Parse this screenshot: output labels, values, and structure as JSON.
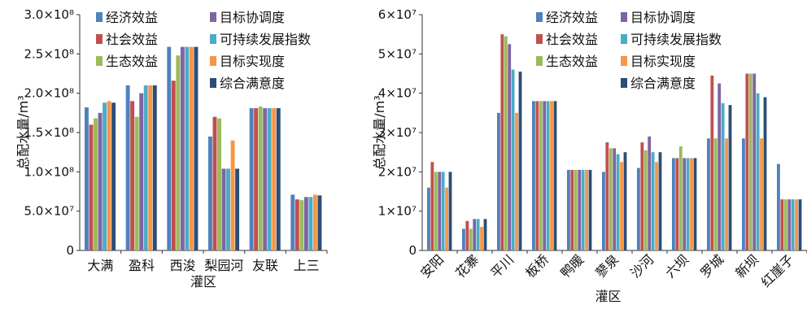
{
  "chart_data": [
    {
      "type": "bar",
      "xlabel": "灌区",
      "ylabel": "总配水量/m³",
      "ylim": [
        0,
        300000000
      ],
      "y_ticks": [
        0,
        50000000,
        100000000,
        150000000,
        200000000,
        250000000,
        300000000
      ],
      "y_tick_labels": [
        "0",
        "5.0×10⁷",
        "1.0×10⁸",
        "1.5×10⁸",
        "2.0×10⁸",
        "2.5×10⁸",
        "3.0×10⁸"
      ],
      "categories": [
        "大满",
        "盈科",
        "西浚",
        "梨园河",
        "友联",
        "上三"
      ],
      "legend_position": "top-left",
      "series": [
        {
          "name": "经济效益",
          "values": [
            182000000,
            210000000,
            259000000,
            145000000,
            181000000,
            71000000
          ]
        },
        {
          "name": "社会效益",
          "values": [
            160000000,
            190000000,
            216000000,
            170000000,
            181000000,
            65000000
          ]
        },
        {
          "name": "生态效益",
          "values": [
            168000000,
            170000000,
            248000000,
            168000000,
            183000000,
            64000000
          ]
        },
        {
          "name": "目标协调度",
          "values": [
            175000000,
            200000000,
            259000000,
            104000000,
            181000000,
            68000000
          ]
        },
        {
          "name": "可持续发展指数",
          "values": [
            188000000,
            210000000,
            259000000,
            104000000,
            181000000,
            68000000
          ]
        },
        {
          "name": "目标实现度",
          "values": [
            190000000,
            210000000,
            259000000,
            140000000,
            181000000,
            71000000
          ]
        },
        {
          "name": "综合满意度",
          "values": [
            188000000,
            210000000,
            259000000,
            104000000,
            181000000,
            70000000
          ]
        }
      ]
    },
    {
      "type": "bar",
      "xlabel": "灌区",
      "ylabel": "总配水量/m³",
      "ylim": [
        0,
        60000000
      ],
      "y_ticks": [
        0,
        10000000,
        20000000,
        30000000,
        40000000,
        50000000,
        60000000
      ],
      "y_tick_labels": [
        "0",
        "1×10⁷",
        "2×10⁷",
        "3×10⁷",
        "4×10⁷",
        "5×10⁷",
        "6×10⁷"
      ],
      "categories": [
        "安阳",
        "花寨",
        "平川",
        "板桥",
        "鸭暖",
        "蓼泉",
        "沙河",
        "六坝",
        "罗城",
        "新坝",
        "红崖子"
      ],
      "legend_position": "top-right",
      "series": [
        {
          "name": "经济效益",
          "values": [
            16000000,
            5500000,
            35000000,
            38000000,
            20500000,
            20000000,
            21000000,
            23500000,
            28500000,
            28500000,
            22000000
          ]
        },
        {
          "name": "社会效益",
          "values": [
            22500000,
            7500000,
            55000000,
            38000000,
            20500000,
            27500000,
            27500000,
            23500000,
            44500000,
            45000000,
            13000000
          ]
        },
        {
          "name": "生态效益",
          "values": [
            20000000,
            5500000,
            54500000,
            38000000,
            20500000,
            26000000,
            25500000,
            26500000,
            28500000,
            45000000,
            13000000
          ]
        },
        {
          "name": "目标协调度",
          "values": [
            20000000,
            8000000,
            52500000,
            38000000,
            20500000,
            26000000,
            29000000,
            23500000,
            42500000,
            45000000,
            13000000
          ]
        },
        {
          "name": "可持续发展指数",
          "values": [
            20000000,
            8000000,
            46000000,
            38000000,
            20500000,
            24500000,
            25000000,
            23500000,
            37500000,
            40000000,
            13000000
          ]
        },
        {
          "name": "目标实现度",
          "values": [
            16000000,
            6000000,
            35000000,
            38000000,
            20500000,
            22500000,
            22500000,
            23500000,
            28500000,
            28500000,
            13000000
          ]
        },
        {
          "name": "综合满意度",
          "values": [
            20000000,
            8000000,
            45500000,
            38000000,
            20500000,
            25000000,
            25000000,
            23500000,
            37000000,
            39000000,
            13000000
          ]
        }
      ]
    }
  ],
  "colors": [
    "#4f81bd",
    "#c0504d",
    "#9bbb59",
    "#8064a2",
    "#4bacc6",
    "#f79646",
    "#2c4d75"
  ]
}
